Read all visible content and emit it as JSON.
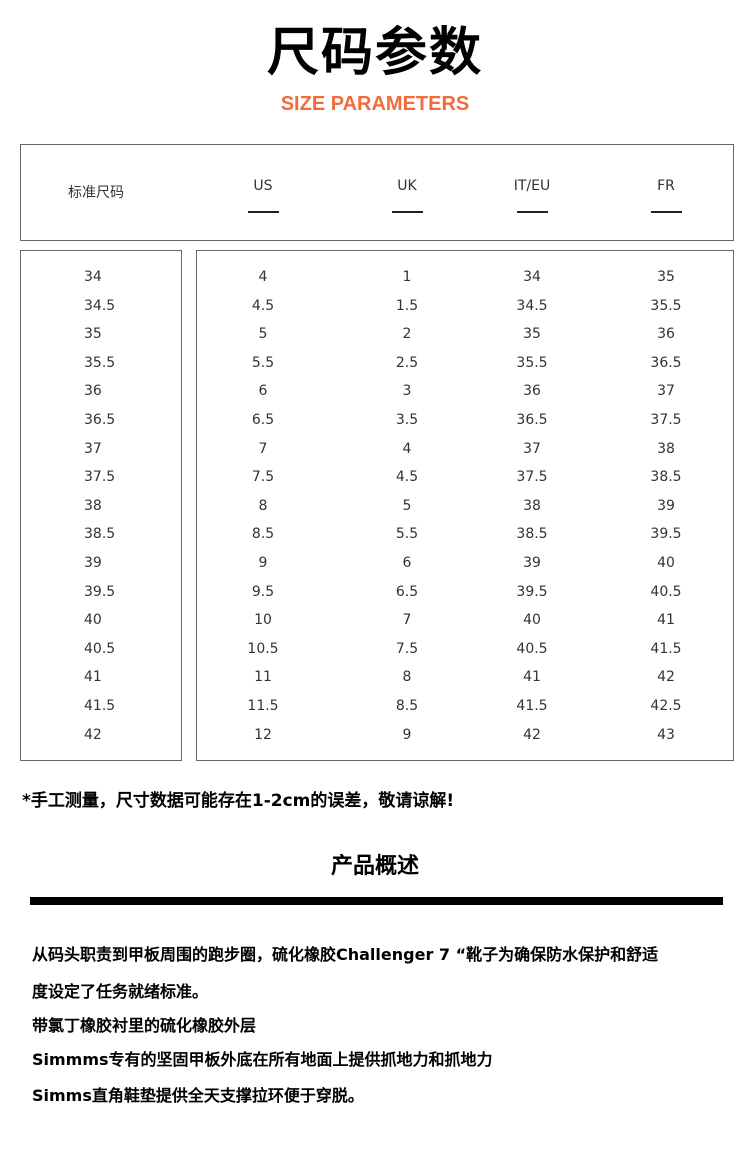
{
  "header": {
    "title": "尺码参数",
    "subtitle": "SIZE PARAMETERS",
    "subtitle_color": "#f26b3a"
  },
  "table": {
    "headers": [
      "标准尺码",
      "US",
      "UK",
      "IT/EU",
      "FR"
    ],
    "rows": [
      [
        "34",
        "4",
        "1",
        "34",
        "35"
      ],
      [
        "34.5",
        "4.5",
        "1.5",
        "34.5",
        "35.5"
      ],
      [
        "35",
        "5",
        "2",
        "35",
        "36"
      ],
      [
        "35.5",
        "5.5",
        "2.5",
        "35.5",
        "36.5"
      ],
      [
        "36",
        "6",
        "3",
        "36",
        "37"
      ],
      [
        "36.5",
        "6.5",
        "3.5",
        "36.5",
        "37.5"
      ],
      [
        "37",
        "7",
        "4",
        "37",
        "38"
      ],
      [
        "37.5",
        "7.5",
        "4.5",
        "37.5",
        "38.5"
      ],
      [
        "38",
        "8",
        "5",
        "38",
        "39"
      ],
      [
        "38.5",
        "8.5",
        "5.5",
        "38.5",
        "39.5"
      ],
      [
        "39",
        "9",
        "6",
        "39",
        "40"
      ],
      [
        "39.5",
        "9.5",
        "6.5",
        "39.5",
        "40.5"
      ],
      [
        "40",
        "10",
        "7",
        "40",
        "41"
      ],
      [
        "40.5",
        "10.5",
        "7.5",
        "40.5",
        "41.5"
      ],
      [
        "41",
        "11",
        "8",
        "41",
        "42"
      ],
      [
        "41.5",
        "11.5",
        "8.5",
        "41.5",
        "42.5"
      ],
      [
        "42",
        "12",
        "9",
        "42",
        "43"
      ]
    ]
  },
  "note": "*手工测量，尺寸数据可能存在1-2cm的误差，敬请谅解!",
  "overview": {
    "title": "产品概述",
    "lines": [
      "从码头职责到甲板周围的跑步圈，硫化橡胶Challenger 7 “靴子为确保防水保护和舒适",
      "度设定了任务就绪标准。",
      "带氯丁橡胶衬里的硫化橡胶外层",
      "Simmms专有的坚固甲板外底在所有地面上提供抓地力和抓地力",
      "Simms直角鞋垫提供全天支撑拉环便于穿脱。"
    ]
  }
}
